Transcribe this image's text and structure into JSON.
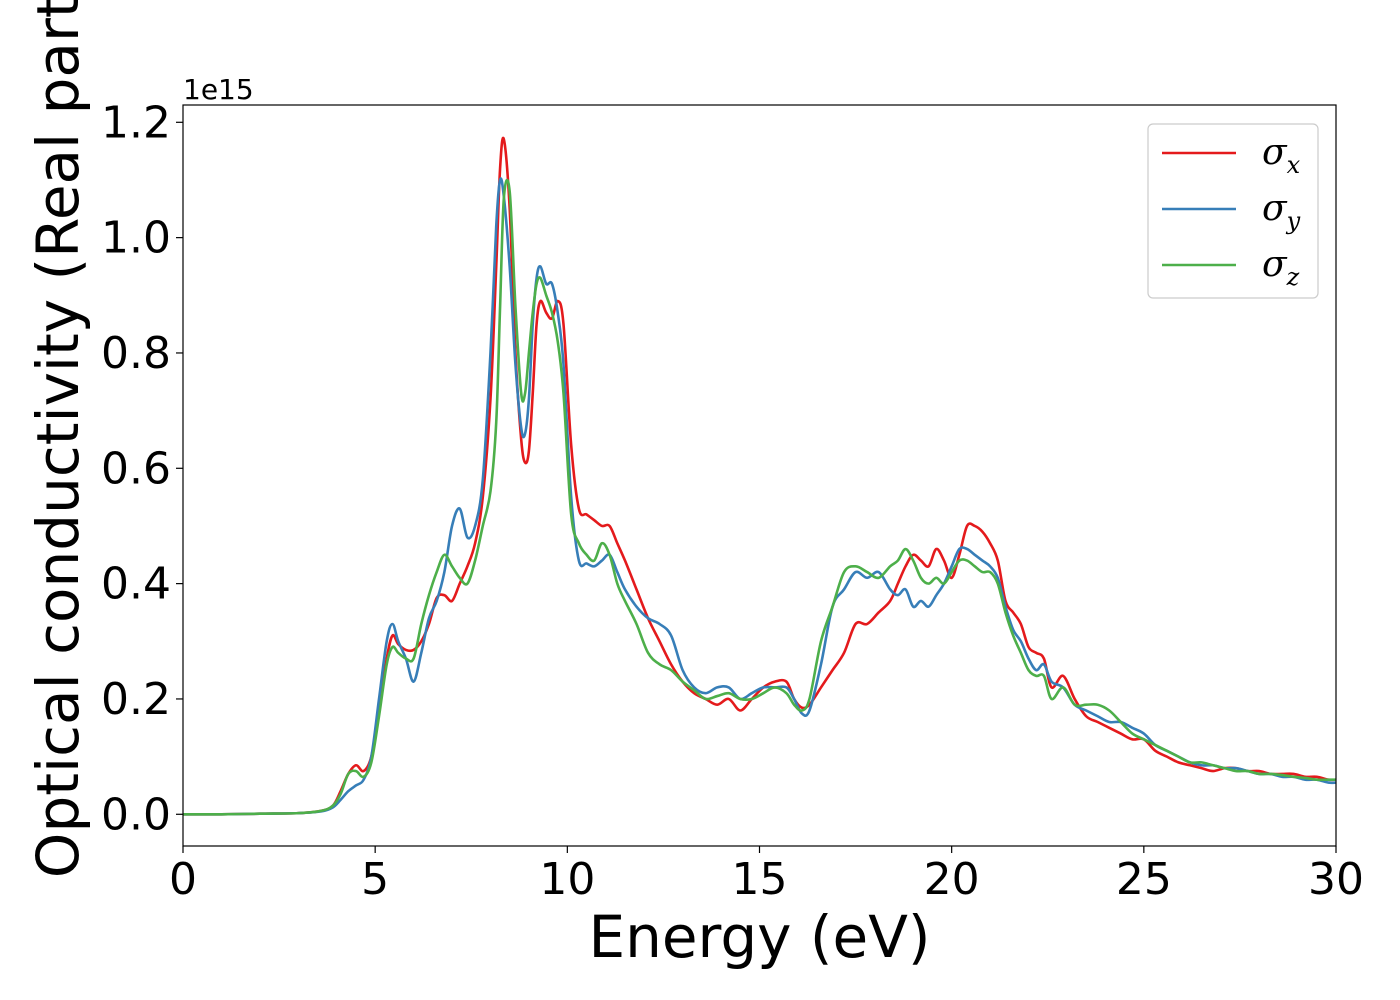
{
  "chart_data": {
    "type": "line",
    "title": "",
    "xlabel": "Energy (eV)",
    "ylabel": "Optical conductivity (Real part)",
    "y_offset_label": "1e15",
    "y_scale": 1000000000000000.0,
    "xlim": [
      0,
      30
    ],
    "ylim": [
      -0.055,
      1.23
    ],
    "x_ticks": [
      0,
      5,
      10,
      15,
      20,
      25,
      30
    ],
    "y_ticks": [
      0.0,
      0.2,
      0.4,
      0.6,
      0.8,
      1.0,
      1.2
    ],
    "x_tick_labels": [
      "0",
      "5",
      "10",
      "15",
      "20",
      "25",
      "30"
    ],
    "y_tick_labels": [
      "0.0",
      "0.2",
      "0.4",
      "0.6",
      "0.8",
      "1.0",
      "1.2"
    ],
    "grid": false,
    "legend_position": "top-right",
    "series": [
      {
        "name": "σx",
        "legend_symbol": "σ",
        "legend_subscript": "x",
        "color": "#e41a1c",
        "x": [
          0,
          1,
          2,
          3,
          3.6,
          3.9,
          4.1,
          4.3,
          4.5,
          4.7,
          4.9,
          5.1,
          5.3,
          5.45,
          5.6,
          5.8,
          6.0,
          6.2,
          6.4,
          6.6,
          6.8,
          7.0,
          7.2,
          7.4,
          7.6,
          7.8,
          8.0,
          8.15,
          8.25,
          8.35,
          8.5,
          8.65,
          8.8,
          8.9,
          9.0,
          9.1,
          9.2,
          9.3,
          9.45,
          9.6,
          9.75,
          9.9,
          10.1,
          10.3,
          10.5,
          10.7,
          10.9,
          11.1,
          11.3,
          11.5,
          11.8,
          12.1,
          12.4,
          12.7,
          13.0,
          13.3,
          13.6,
          13.9,
          14.2,
          14.5,
          14.8,
          15.1,
          15.4,
          15.7,
          15.9,
          16.1,
          16.3,
          16.6,
          16.9,
          17.2,
          17.5,
          17.8,
          18.1,
          18.4,
          18.6,
          18.8,
          19.0,
          19.2,
          19.4,
          19.6,
          19.8,
          20.0,
          20.2,
          20.4,
          20.6,
          20.8,
          21.0,
          21.2,
          21.4,
          21.6,
          21.8,
          22.0,
          22.2,
          22.4,
          22.6,
          22.9,
          23.2,
          23.5,
          23.8,
          24.1,
          24.4,
          24.7,
          25.0,
          25.3,
          25.6,
          25.9,
          26.2,
          26.5,
          26.8,
          27.1,
          27.4,
          27.7,
          28.0,
          28.3,
          28.6,
          28.9,
          29.2,
          29.5,
          29.8,
          30.0
        ],
        "values": [
          0.0,
          0.0,
          0.001,
          0.002,
          0.006,
          0.015,
          0.04,
          0.07,
          0.085,
          0.075,
          0.1,
          0.18,
          0.27,
          0.31,
          0.295,
          0.285,
          0.285,
          0.3,
          0.33,
          0.375,
          0.38,
          0.37,
          0.4,
          0.43,
          0.47,
          0.55,
          0.72,
          0.95,
          1.12,
          1.17,
          1.05,
          0.8,
          0.65,
          0.61,
          0.63,
          0.73,
          0.85,
          0.89,
          0.87,
          0.86,
          0.89,
          0.85,
          0.64,
          0.53,
          0.52,
          0.51,
          0.5,
          0.5,
          0.47,
          0.44,
          0.39,
          0.34,
          0.3,
          0.26,
          0.23,
          0.21,
          0.2,
          0.19,
          0.2,
          0.18,
          0.2,
          0.22,
          0.23,
          0.23,
          0.2,
          0.185,
          0.19,
          0.22,
          0.25,
          0.28,
          0.33,
          0.33,
          0.35,
          0.37,
          0.4,
          0.43,
          0.45,
          0.44,
          0.43,
          0.46,
          0.44,
          0.41,
          0.45,
          0.5,
          0.5,
          0.49,
          0.47,
          0.44,
          0.37,
          0.35,
          0.33,
          0.29,
          0.28,
          0.27,
          0.22,
          0.24,
          0.2,
          0.17,
          0.16,
          0.15,
          0.14,
          0.13,
          0.13,
          0.11,
          0.1,
          0.09,
          0.085,
          0.08,
          0.075,
          0.08,
          0.08,
          0.075,
          0.075,
          0.07,
          0.07,
          0.07,
          0.065,
          0.065,
          0.06,
          0.06
        ]
      },
      {
        "name": "σy",
        "legend_symbol": "σ",
        "legend_subscript": "y",
        "color": "#377eb8",
        "x": [
          0,
          1,
          2,
          3,
          3.6,
          3.9,
          4.1,
          4.3,
          4.5,
          4.7,
          4.9,
          5.1,
          5.3,
          5.45,
          5.6,
          5.8,
          6.0,
          6.2,
          6.4,
          6.6,
          6.8,
          7.0,
          7.2,
          7.4,
          7.6,
          7.8,
          8.0,
          8.15,
          8.25,
          8.35,
          8.5,
          8.65,
          8.8,
          8.9,
          9.0,
          9.1,
          9.2,
          9.3,
          9.45,
          9.6,
          9.75,
          9.9,
          10.1,
          10.3,
          10.5,
          10.7,
          10.9,
          11.1,
          11.3,
          11.5,
          11.8,
          12.1,
          12.4,
          12.7,
          13.0,
          13.3,
          13.6,
          13.9,
          14.2,
          14.5,
          14.8,
          15.1,
          15.4,
          15.7,
          15.9,
          16.1,
          16.3,
          16.6,
          16.9,
          17.2,
          17.5,
          17.8,
          18.1,
          18.4,
          18.6,
          18.8,
          19.0,
          19.2,
          19.4,
          19.6,
          19.8,
          20.0,
          20.2,
          20.4,
          20.6,
          20.8,
          21.0,
          21.2,
          21.4,
          21.6,
          21.8,
          22.0,
          22.2,
          22.4,
          22.6,
          22.9,
          23.2,
          23.5,
          23.8,
          24.1,
          24.4,
          24.7,
          25.0,
          25.3,
          25.6,
          25.9,
          26.2,
          26.5,
          26.8,
          27.1,
          27.4,
          27.7,
          28.0,
          28.3,
          28.6,
          28.9,
          29.2,
          29.5,
          29.8,
          30.0
        ],
        "values": [
          0.0,
          0.0,
          0.001,
          0.002,
          0.005,
          0.012,
          0.025,
          0.04,
          0.05,
          0.06,
          0.1,
          0.2,
          0.3,
          0.33,
          0.3,
          0.27,
          0.23,
          0.28,
          0.34,
          0.37,
          0.42,
          0.5,
          0.53,
          0.48,
          0.5,
          0.58,
          0.8,
          1.02,
          1.1,
          1.07,
          0.95,
          0.78,
          0.67,
          0.66,
          0.72,
          0.85,
          0.93,
          0.95,
          0.92,
          0.92,
          0.87,
          0.78,
          0.55,
          0.44,
          0.435,
          0.43,
          0.44,
          0.45,
          0.42,
          0.39,
          0.36,
          0.34,
          0.33,
          0.31,
          0.25,
          0.22,
          0.21,
          0.22,
          0.22,
          0.2,
          0.21,
          0.22,
          0.22,
          0.22,
          0.2,
          0.175,
          0.18,
          0.26,
          0.36,
          0.39,
          0.42,
          0.41,
          0.42,
          0.39,
          0.38,
          0.39,
          0.36,
          0.37,
          0.36,
          0.38,
          0.4,
          0.43,
          0.46,
          0.46,
          0.45,
          0.44,
          0.43,
          0.41,
          0.36,
          0.32,
          0.3,
          0.27,
          0.25,
          0.26,
          0.23,
          0.22,
          0.19,
          0.18,
          0.17,
          0.16,
          0.16,
          0.15,
          0.14,
          0.12,
          0.11,
          0.1,
          0.09,
          0.085,
          0.085,
          0.08,
          0.08,
          0.075,
          0.07,
          0.07,
          0.065,
          0.065,
          0.06,
          0.06,
          0.055,
          0.055
        ]
      },
      {
        "name": "σz",
        "legend_symbol": "σ",
        "legend_subscript": "z",
        "color": "#4daf4a",
        "x": [
          0,
          1,
          2,
          3,
          3.6,
          3.9,
          4.1,
          4.3,
          4.5,
          4.7,
          4.9,
          5.1,
          5.3,
          5.45,
          5.6,
          5.8,
          6.0,
          6.2,
          6.4,
          6.6,
          6.8,
          7.0,
          7.2,
          7.4,
          7.6,
          7.8,
          8.0,
          8.15,
          8.25,
          8.35,
          8.5,
          8.65,
          8.8,
          8.9,
          9.0,
          9.1,
          9.2,
          9.3,
          9.45,
          9.6,
          9.75,
          9.9,
          10.1,
          10.3,
          10.5,
          10.7,
          10.9,
          11.1,
          11.3,
          11.5,
          11.8,
          12.1,
          12.4,
          12.7,
          13.0,
          13.3,
          13.6,
          13.9,
          14.2,
          14.5,
          14.8,
          15.1,
          15.4,
          15.7,
          15.9,
          16.1,
          16.3,
          16.6,
          16.9,
          17.2,
          17.5,
          17.8,
          18.1,
          18.4,
          18.6,
          18.8,
          19.0,
          19.2,
          19.4,
          19.6,
          19.8,
          20.0,
          20.2,
          20.4,
          20.6,
          20.8,
          21.0,
          21.2,
          21.4,
          21.6,
          21.8,
          22.0,
          22.2,
          22.4,
          22.6,
          22.9,
          23.2,
          23.5,
          23.8,
          24.1,
          24.4,
          24.7,
          25.0,
          25.3,
          25.6,
          25.9,
          26.2,
          26.5,
          26.8,
          27.1,
          27.4,
          27.7,
          28.0,
          28.3,
          28.6,
          28.9,
          29.2,
          29.5,
          29.8,
          30.0
        ],
        "values": [
          0.0,
          0.0,
          0.001,
          0.002,
          0.006,
          0.015,
          0.035,
          0.07,
          0.075,
          0.065,
          0.09,
          0.17,
          0.26,
          0.29,
          0.28,
          0.27,
          0.27,
          0.33,
          0.38,
          0.42,
          0.45,
          0.43,
          0.41,
          0.4,
          0.44,
          0.5,
          0.56,
          0.68,
          0.88,
          1.07,
          1.08,
          0.88,
          0.73,
          0.73,
          0.8,
          0.87,
          0.92,
          0.93,
          0.9,
          0.87,
          0.82,
          0.73,
          0.52,
          0.47,
          0.45,
          0.44,
          0.47,
          0.45,
          0.4,
          0.37,
          0.33,
          0.28,
          0.26,
          0.25,
          0.23,
          0.215,
          0.2,
          0.205,
          0.21,
          0.2,
          0.2,
          0.21,
          0.22,
          0.21,
          0.19,
          0.18,
          0.2,
          0.3,
          0.36,
          0.42,
          0.43,
          0.42,
          0.41,
          0.43,
          0.44,
          0.46,
          0.44,
          0.41,
          0.4,
          0.41,
          0.4,
          0.42,
          0.44,
          0.44,
          0.43,
          0.42,
          0.42,
          0.4,
          0.35,
          0.31,
          0.28,
          0.25,
          0.24,
          0.24,
          0.2,
          0.22,
          0.19,
          0.19,
          0.19,
          0.18,
          0.16,
          0.14,
          0.13,
          0.12,
          0.11,
          0.1,
          0.09,
          0.09,
          0.085,
          0.08,
          0.075,
          0.075,
          0.07,
          0.07,
          0.068,
          0.065,
          0.063,
          0.06,
          0.06,
          0.06
        ]
      }
    ]
  }
}
